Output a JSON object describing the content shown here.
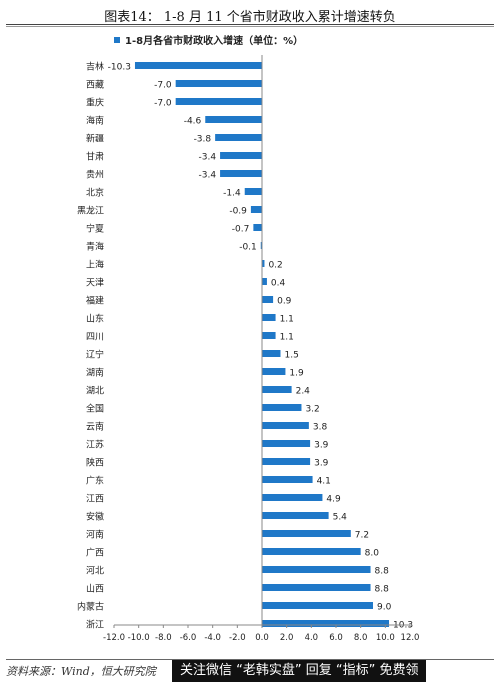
{
  "page_title": "图表14：  1-8 月 11 个省市财政收入累计增速转负",
  "source_note": "资料来源：Wind，恒大研究院",
  "watermark": "关注微信 “老韩实盘” 回复 “指标” 免费领",
  "colors": {
    "bar": "#1f78c8",
    "axis": "#888888",
    "text": "#222222"
  },
  "chart_data": {
    "type": "bar",
    "orientation": "horizontal",
    "series": [
      {
        "name": "1-8月各省市财政收入增速（单位：%）"
      }
    ],
    "legend_position": "top-left",
    "xlim": [
      -12.0,
      12.0
    ],
    "xticks": [
      "-12.0",
      "-10.0",
      "-8.0",
      "-6.0",
      "-4.0",
      "-2.0",
      "0.0",
      "2.0",
      "4.0",
      "6.0",
      "8.0",
      "10.0",
      "12.0"
    ],
    "grid": false,
    "categories": [
      "吉林",
      "西藏",
      "重庆",
      "海南",
      "新疆",
      "甘肃",
      "贵州",
      "北京",
      "黑龙江",
      "宁夏",
      "青海",
      "上海",
      "天津",
      "福建",
      "山东",
      "四川",
      "辽宁",
      "湖南",
      "湖北",
      "全国",
      "云南",
      "江苏",
      "陕西",
      "广东",
      "江西",
      "安徽",
      "河南",
      "广西",
      "河北",
      "山西",
      "内蒙古",
      "浙江"
    ],
    "values": [
      -10.3,
      -7.0,
      -7.0,
      -4.6,
      -3.8,
      -3.4,
      -3.4,
      -1.4,
      -0.9,
      -0.7,
      -0.1,
      0.2,
      0.4,
      0.9,
      1.1,
      1.1,
      1.5,
      1.9,
      2.4,
      3.2,
      3.8,
      3.9,
      3.9,
      4.1,
      4.9,
      5.4,
      7.2,
      8.0,
      8.8,
      8.8,
      9.0,
      10.3
    ],
    "value_labels": [
      "-10.3",
      "-7.0",
      "-7.0",
      "-4.6",
      "-3.8",
      "-3.4",
      "-3.4",
      "-1.4",
      "-0.9",
      "-0.7",
      "-0.1",
      "0.2",
      "0.4",
      "0.9",
      "1.1",
      "1.1",
      "1.5",
      "1.9",
      "2.4",
      "3.2",
      "3.8",
      "3.9",
      "3.9",
      "4.1",
      "4.9",
      "5.4",
      "7.2",
      "8.0",
      "8.8",
      "8.8",
      "9.0",
      "10.3"
    ]
  }
}
